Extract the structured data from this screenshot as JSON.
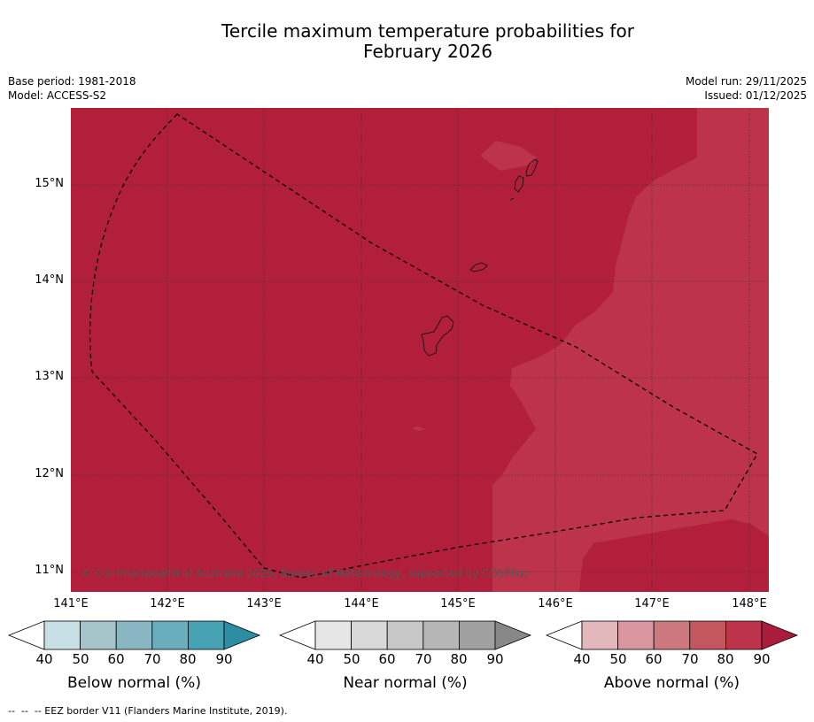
{
  "title_line1": "Tercile maximum temperature probabilities for",
  "title_line2": "February 2026",
  "meta": {
    "base_period": "Base period: 1981-2018",
    "model": "Model: ACCESS-S2",
    "model_run": "Model run: 29/11/2025",
    "issued": "Issued: 01/12/2025"
  },
  "map": {
    "copyright": "© Commonwealth of Australia 2025, Bureau of Meteorology, supported by COSPPac",
    "lat_labels": [
      "15°N",
      "14°N",
      "13°N",
      "12°N",
      "11°N"
    ],
    "lon_labels": [
      "141°E",
      "142°E",
      "143°E",
      "144°E",
      "145°E",
      "146°E",
      "147°E",
      "148°E"
    ],
    "category_shown": "Above normal",
    "category_levels": [
      "80-90%",
      "70-80%"
    ]
  },
  "colorbars": [
    {
      "title": "Below normal (%)",
      "ticks": [
        "40",
        "50",
        "60",
        "70",
        "80",
        "90"
      ],
      "colors": [
        "#ffffff",
        "#c6e0e6",
        "#a6c5ca",
        "#89b6c2",
        "#6aadbd",
        "#47a2b3",
        "#2d8ea3"
      ]
    },
    {
      "title": "Near normal (%)",
      "ticks": [
        "40",
        "50",
        "60",
        "70",
        "80",
        "90"
      ],
      "colors": [
        "#ffffff",
        "#e6e6e6",
        "#d8d8d8",
        "#c8c8c8",
        "#b6b6b6",
        "#a0a0a0",
        "#888888"
      ]
    },
    {
      "title": "Above normal (%)",
      "ticks": [
        "40",
        "50",
        "60",
        "70",
        "80",
        "90"
      ],
      "colors": [
        "#ffffff",
        "#e2b8bd",
        "#d8979e",
        "#cd787f",
        "#c3575f",
        "#bd3349",
        "#ab1b3c"
      ]
    }
  ],
  "footnote": "--  --  -- EEZ border V11 (Flanders Marine Institute, 2019).",
  "palette": {
    "above_80_90": "#b21f3a",
    "above_70_80": "#bd3349"
  }
}
